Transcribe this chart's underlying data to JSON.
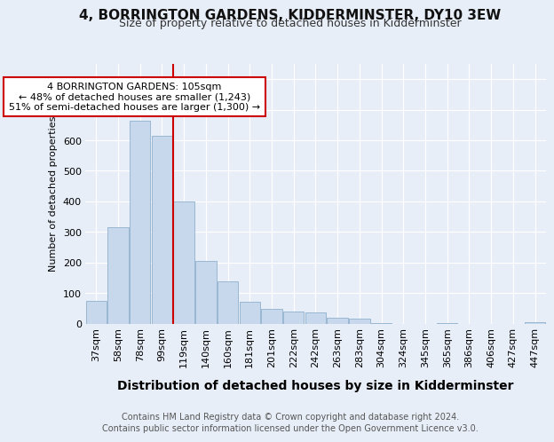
{
  "title": "4, BORRINGTON GARDENS, KIDDERMINSTER, DY10 3EW",
  "subtitle": "Size of property relative to detached houses in Kidderminster",
  "xlabel": "Distribution of detached houses by size in Kidderminster",
  "ylabel": "Number of detached properties",
  "footnote1": "Contains HM Land Registry data © Crown copyright and database right 2024.",
  "footnote2": "Contains public sector information licensed under the Open Government Licence v3.0.",
  "categories": [
    "37sqm",
    "58sqm",
    "78sqm",
    "99sqm",
    "119sqm",
    "140sqm",
    "160sqm",
    "181sqm",
    "201sqm",
    "222sqm",
    "242sqm",
    "263sqm",
    "283sqm",
    "304sqm",
    "324sqm",
    "345sqm",
    "365sqm",
    "386sqm",
    "406sqm",
    "427sqm",
    "447sqm"
  ],
  "values": [
    75,
    315,
    665,
    615,
    400,
    205,
    137,
    70,
    48,
    38,
    35,
    20,
    15,
    2,
    0,
    0,
    1,
    0,
    0,
    0,
    3
  ],
  "bar_color": "#c8d8ec",
  "bar_edge_color": "#8fb0cc",
  "red_line_x": 3.5,
  "red_line_color": "#cc0000",
  "annotation_text": "4 BORRINGTON GARDENS: 105sqm\n← 48% of detached houses are smaller (1,243)\n51% of semi-detached houses are larger (1,300) →",
  "annotation_box_color": "#ffffff",
  "annotation_box_edge": "#cc0000",
  "ylim": [
    0,
    850
  ],
  "yticks": [
    0,
    100,
    200,
    300,
    400,
    500,
    600,
    700,
    800
  ],
  "bg_color": "#e8eef8",
  "plot_bg_color": "#e8eef8",
  "grid_color": "#ffffff",
  "title_fontsize": 11,
  "subtitle_fontsize": 9,
  "xlabel_fontsize": 10,
  "ylabel_fontsize": 8,
  "tick_fontsize": 8,
  "annot_fontsize": 8,
  "footnote_fontsize": 7
}
